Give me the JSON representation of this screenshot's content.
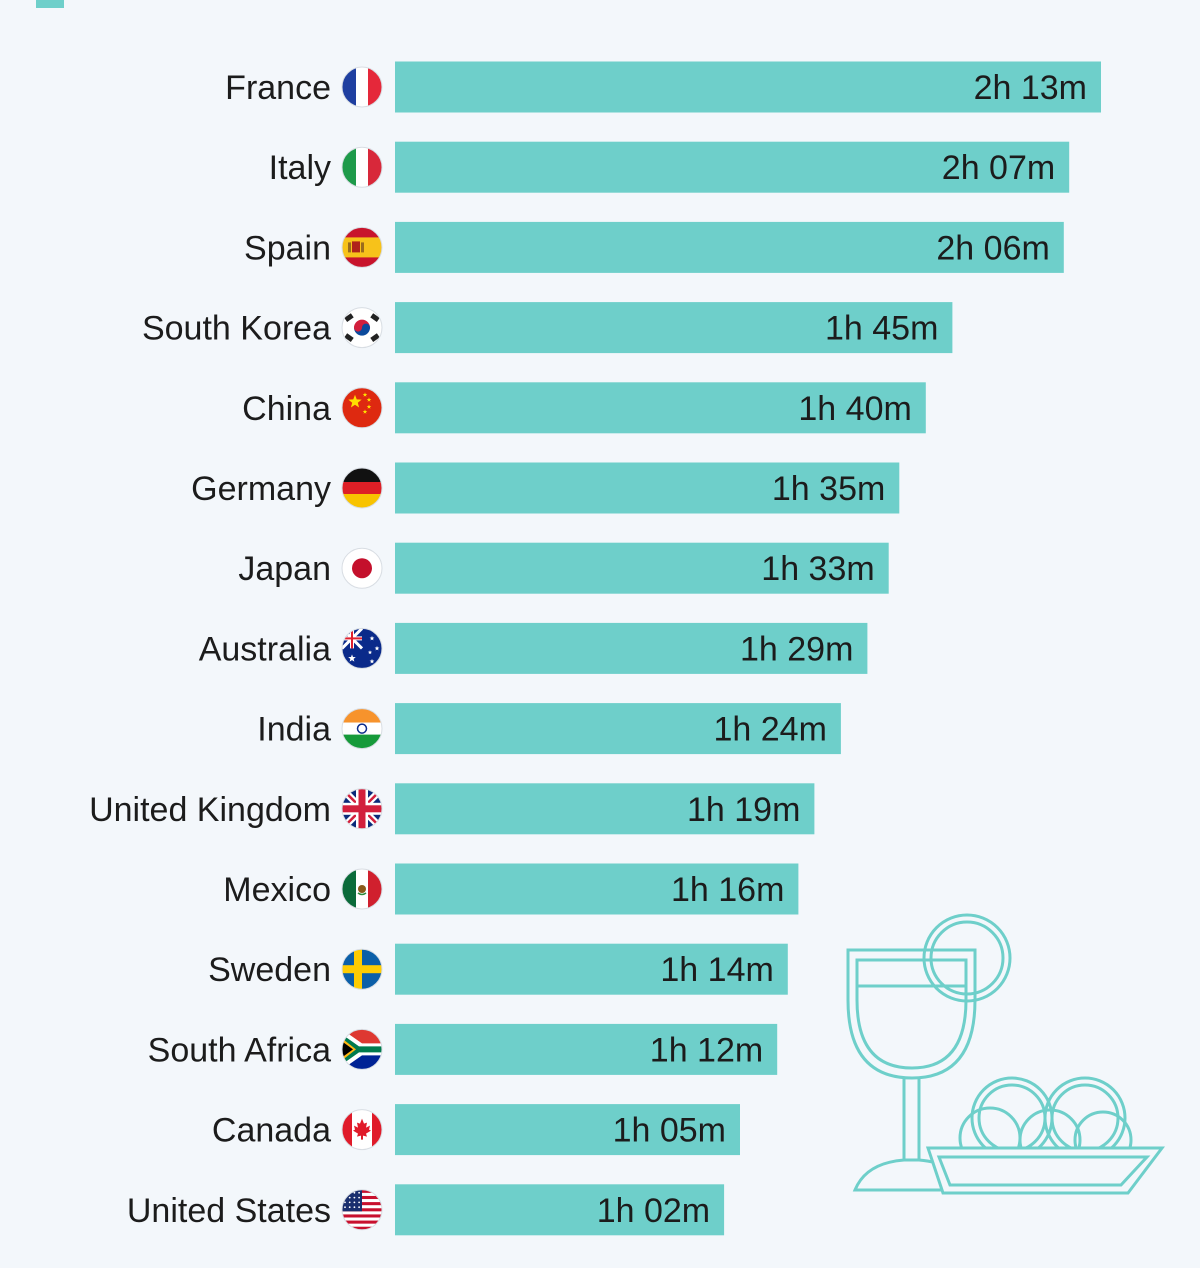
{
  "chart_data": {
    "type": "bar",
    "orientation": "horizontal",
    "categories": [
      "France",
      "Italy",
      "Spain",
      "South Korea",
      "China",
      "Germany",
      "Japan",
      "Australia",
      "India",
      "United Kingdom",
      "Mexico",
      "Sweden",
      "South Africa",
      "Canada",
      "United States"
    ],
    "values": [
      133,
      127,
      126,
      105,
      100,
      95,
      93,
      89,
      84,
      79,
      76,
      74,
      72,
      65,
      62
    ],
    "value_labels": [
      "2h 13m",
      "2h 07m",
      "2h 06m",
      "1h 45m",
      "1h 40m",
      "1h 35m",
      "1h 33m",
      "1h 29m",
      "1h 24m",
      "1h 19m",
      "1h 16m",
      "1h 14m",
      "1h 12m",
      "1h 05m",
      "1h 02m"
    ],
    "unit": "minutes",
    "flags": [
      "france-flag-icon",
      "italy-flag-icon",
      "spain-flag-icon",
      "south-korea-flag-icon",
      "china-flag-icon",
      "germany-flag-icon",
      "japan-flag-icon",
      "australia-flag-icon",
      "india-flag-icon",
      "united-kingdom-flag-icon",
      "mexico-flag-icon",
      "sweden-flag-icon",
      "south-africa-flag-icon",
      "canada-flag-icon",
      "united-states-flag-icon"
    ],
    "xlim": [
      0,
      134
    ],
    "grid": false,
    "legend": "none",
    "bar_color": "#6ecfca",
    "illustration": "wine-glass-and-food-plate-icon"
  }
}
